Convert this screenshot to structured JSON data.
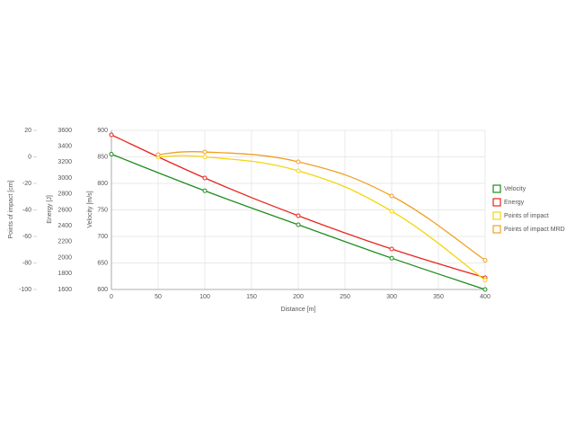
{
  "chart_data": {
    "type": "line",
    "xlabel": "Distance [m]",
    "xlim": [
      0,
      400
    ],
    "xticks": [
      0,
      50,
      100,
      150,
      200,
      250,
      300,
      350,
      400
    ],
    "ylabel": "Velocity [m/s]",
    "ylim": [
      600,
      900
    ],
    "yticks": [
      600,
      650,
      700,
      750,
      800,
      850,
      900
    ],
    "y2label": "Energy [J]",
    "y2lim": [
      1600,
      3600
    ],
    "y2ticks": [
      1600,
      1800,
      2000,
      2200,
      2400,
      2600,
      2800,
      3000,
      3200,
      3400,
      3600
    ],
    "y3label": "Points of impact [cm]",
    "y3lim": [
      -100,
      20
    ],
    "y3ticks": [
      -100,
      -80,
      -60,
      -40,
      -20,
      0,
      20
    ],
    "grid": true,
    "legend": "right",
    "series": [
      {
        "name": "Velocity",
        "color": "#1e8c1e",
        "axis": "y",
        "x": [
          0,
          100,
          200,
          300,
          400
        ],
        "values": [
          855,
          786,
          722,
          659,
          600
        ]
      },
      {
        "name": "Energy",
        "color": "#e8241c",
        "axis": "y2",
        "x": [
          0,
          100,
          200,
          300,
          400
        ],
        "values": [
          3543,
          3001,
          2527,
          2108,
          1747
        ]
      },
      {
        "name": "Points of impact",
        "color": "#f5d50e",
        "axis": "y3",
        "x": [
          50,
          100,
          200,
          300,
          400
        ],
        "values": [
          0,
          0,
          -10.5,
          -41,
          -93
        ]
      },
      {
        "name": "Points of impact MRD",
        "color": "#f0a024",
        "axis": "y3",
        "x": [
          50,
          100,
          200,
          300,
          400
        ],
        "values": [
          1.7,
          3.7,
          -3.7,
          -29.5,
          -78
        ]
      }
    ]
  }
}
